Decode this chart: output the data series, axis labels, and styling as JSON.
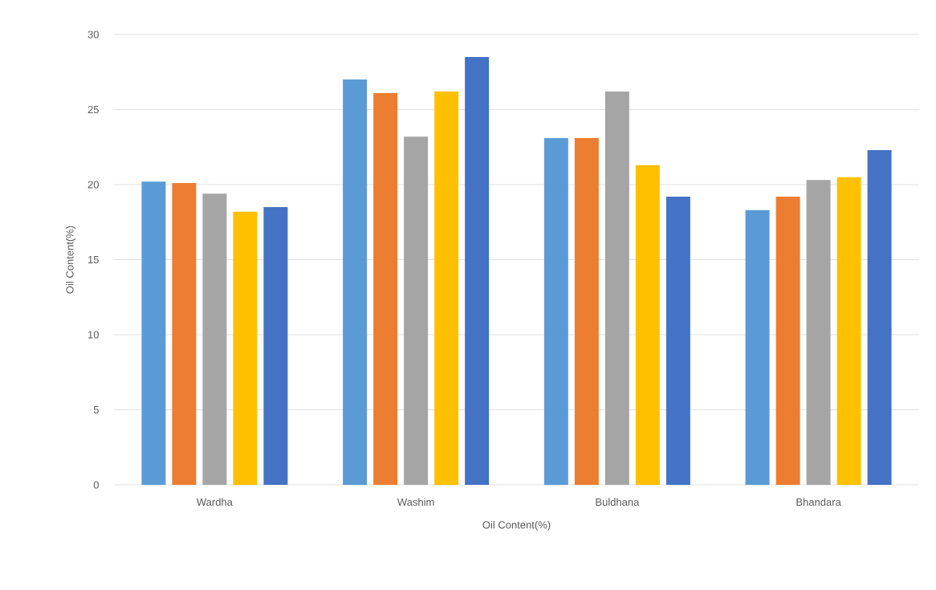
{
  "chart_data": {
    "type": "bar",
    "xlabel": "Oil Content(%)",
    "ylabel": "Oil Content(%)",
    "categories": [
      "Wardha",
      "Washim",
      "Buldhana",
      "Bhandara"
    ],
    "series": [
      {
        "color": "#5b9bd5",
        "values": [
          20.2,
          27.0,
          23.1,
          18.3
        ]
      },
      {
        "color": "#ed7d31",
        "values": [
          20.1,
          26.1,
          23.1,
          19.2
        ]
      },
      {
        "color": "#a5a5a5",
        "values": [
          19.4,
          23.2,
          26.2,
          20.3
        ]
      },
      {
        "color": "#ffc000",
        "values": [
          18.2,
          26.2,
          21.3,
          20.5
        ]
      },
      {
        "color": "#4472c4",
        "values": [
          18.5,
          28.5,
          19.2,
          22.3
        ]
      }
    ],
    "ylim": [
      0,
      30
    ],
    "yticks": [
      0,
      5,
      10,
      15,
      20,
      25,
      30
    ],
    "grid": "y"
  }
}
